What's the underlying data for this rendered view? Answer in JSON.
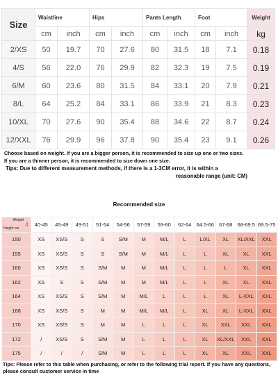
{
  "size_table": {
    "headers": [
      "Size",
      "Waistline",
      "Hips",
      "Pants Length",
      "Foot",
      "Weight"
    ],
    "units": [
      "cm",
      "inch",
      "cm",
      "inch",
      "cm",
      "inch",
      "cm",
      "inch",
      "kg"
    ],
    "rows": [
      [
        "2/XS",
        "50",
        "19.7",
        "70",
        "27.6",
        "80",
        "31.5",
        "18",
        "7.1",
        "0.18"
      ],
      [
        "4/S",
        "56",
        "22.0",
        "76",
        "29.9",
        "82",
        "32.3",
        "19",
        "7.5",
        "0.19"
      ],
      [
        "6/M",
        "60",
        "23.6",
        "80",
        "31.5",
        "84",
        "33.1",
        "20",
        "7.9",
        "0.21"
      ],
      [
        "8/L",
        "64",
        "25.2",
        "84",
        "33.1",
        "86",
        "33.9",
        "21",
        "8.3",
        "0.23"
      ],
      [
        "10/XL",
        "70",
        "27.6",
        "90",
        "35.4",
        "88",
        "34.6",
        "22",
        "8.7",
        "0.24"
      ],
      [
        "12/XXL",
        "76",
        "29.9",
        "96",
        "37.8",
        "90",
        "35.4",
        "23",
        "9.1",
        "0.26"
      ]
    ]
  },
  "notes": [
    "Choose based on weight. If you are a bigger person, it is recommended to size up one or two sizes.",
    "If you are a thinner person, it is recommended to size down one size.",
    "Tips: Due to different measurement methods, if there is a 1-3CM error, it is within a",
    "reasonable range (unit: CM)"
  ],
  "recommended": {
    "title": "Recommended size",
    "corner_weight": "Weight",
    "corner_mark": "4",
    "corner_height": "Height cm",
    "columns": [
      "40-45",
      "45-49",
      "49-51",
      "51-54",
      "54-56",
      "57-59",
      "59-60",
      "62-64",
      "64.5-66",
      "67-68",
      "68-69.5",
      "69.5-75"
    ],
    "rows": [
      {
        "height": "150",
        "sizes": [
          "XS",
          "XS/S",
          "S",
          "S",
          "S/M",
          "M",
          "M/L",
          "L",
          "L/XL",
          "XL",
          "XL/XXL",
          "XXL"
        ]
      },
      {
        "height": "155",
        "sizes": [
          "XS",
          "XS/S",
          "S",
          "S",
          "S/M",
          "M",
          "M/L",
          "L",
          "L",
          "XL",
          "XL",
          "XXL"
        ]
      },
      {
        "height": "160",
        "sizes": [
          "XS",
          "XS/S",
          "S",
          "S/M",
          "M",
          "M",
          "M/L",
          "L",
          "L",
          "L",
          "XL",
          "XXL"
        ]
      },
      {
        "height": "162",
        "sizes": [
          "XS",
          "S",
          "S",
          "S/M",
          "M",
          "M",
          "M/L",
          "L",
          "L",
          "XL",
          "XL",
          "XXL"
        ]
      },
      {
        "height": "164",
        "sizes": [
          "XS",
          "XS/S",
          "S",
          "S/M",
          "M",
          "M/L",
          "L",
          "L",
          "L",
          "XL",
          "L-XXL",
          "XXL"
        ]
      },
      {
        "height": "168",
        "sizes": [
          "XS",
          "XS/S",
          "S",
          "M",
          "M",
          "M/L",
          "M/L",
          "L",
          "XL",
          "XL",
          "L-XXL",
          "XXL"
        ]
      },
      {
        "height": "170",
        "sizes": [
          "XS",
          "XS/S",
          "S",
          "M",
          "M",
          "L",
          "L",
          "L",
          "XL",
          "XXL",
          "XXL",
          "XXL"
        ]
      },
      {
        "height": "172",
        "sizes": [
          "/",
          "XS/S",
          "S",
          "S/M",
          "M",
          "L",
          "L",
          "L",
          "XL",
          "XL/XXL",
          "XXL",
          "XXL"
        ]
      },
      {
        "height": "175",
        "sizes": [
          "/",
          "/",
          "/",
          "S/M",
          "M",
          "L",
          "L",
          "L",
          "XL",
          "XL",
          "XXL",
          "XXL"
        ]
      }
    ]
  },
  "footer": "Tips: Please refer to this table when purchasing, or refer to the following trial report. If you have any questions, please consult customer service in time"
}
